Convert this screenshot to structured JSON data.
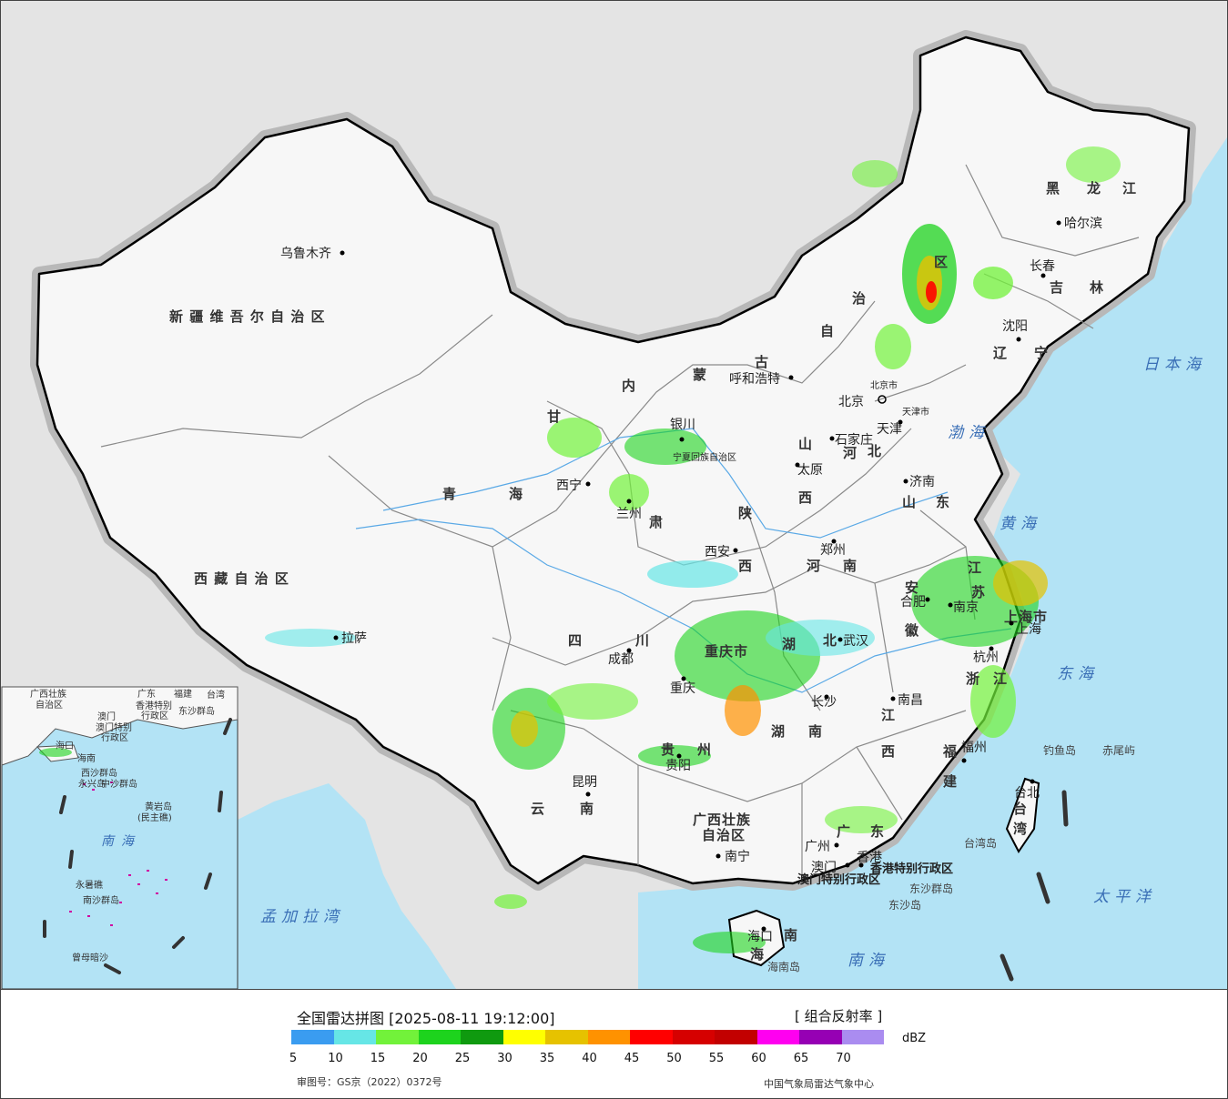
{
  "title": "全国雷达拼图 [2025-08-11 19:12:00]",
  "product": "[ 组合反射率 ]",
  "unit": "dBZ",
  "approval_no": "审图号：GS京（2022）0372号",
  "agency": "中国气象局雷达气象中心",
  "legend": {
    "colors": [
      "#3a9cf0",
      "#66e6e6",
      "#72f23a",
      "#1dd31d",
      "#0f9a0f",
      "#ffff00",
      "#e6c200",
      "#ff9200",
      "#ff0000",
      "#d60000",
      "#c20000",
      "#ff00f0",
      "#9600b4",
      "#aa8cf0"
    ],
    "ticks": [
      "5",
      "10",
      "15",
      "20",
      "25",
      "30",
      "35",
      "40",
      "45",
      "50",
      "55",
      "60",
      "65",
      "70"
    ]
  },
  "map": {
    "colors": {
      "sea": "#b3e3f5",
      "foreign_land": "#e4e4e4",
      "china_land": "#f7f7f7",
      "border": "#000000",
      "province_border": "#8a8a8a",
      "river": "#5aa9e6",
      "halo": "#b8b8b8"
    },
    "provinces": [
      {
        "name": "新 疆 维 吾 尔 自 治 区"
      },
      {
        "name": "西 藏 自 治 区"
      },
      {
        "name": "青"
      },
      {
        "name": "海"
      },
      {
        "name": "甘"
      },
      {
        "name": "肃"
      },
      {
        "name": "内"
      },
      {
        "name": "蒙"
      },
      {
        "name": "古"
      },
      {
        "name": "自"
      },
      {
        "name": "治"
      },
      {
        "name": "区"
      },
      {
        "name": "黑"
      },
      {
        "name": "龙"
      },
      {
        "name": "江"
      },
      {
        "name": "吉"
      },
      {
        "name": "林"
      },
      {
        "name": "辽"
      },
      {
        "name": "宁"
      },
      {
        "name": "河"
      },
      {
        "name": "北"
      },
      {
        "name": "山"
      },
      {
        "name": "西"
      },
      {
        "name": "陕"
      },
      {
        "name": "西"
      },
      {
        "name": "河"
      },
      {
        "name": "南"
      },
      {
        "name": "山"
      },
      {
        "name": "东"
      },
      {
        "name": "安"
      },
      {
        "name": "徽"
      },
      {
        "name": "江"
      },
      {
        "name": "苏"
      },
      {
        "name": "四"
      },
      {
        "name": "川"
      },
      {
        "name": "湖"
      },
      {
        "name": "北"
      },
      {
        "name": "湖"
      },
      {
        "name": "南"
      },
      {
        "name": "江"
      },
      {
        "name": "西"
      },
      {
        "name": "浙"
      },
      {
        "name": "江"
      },
      {
        "name": "福"
      },
      {
        "name": "建"
      },
      {
        "name": "云"
      },
      {
        "name": "南"
      },
      {
        "name": "贵"
      },
      {
        "name": "州"
      },
      {
        "name": "广"
      },
      {
        "name": "东"
      },
      {
        "name": "广西壮族"
      },
      {
        "name": "自治区"
      },
      {
        "name": "海"
      },
      {
        "name": "南"
      },
      {
        "name": "台"
      },
      {
        "name": "湾"
      },
      {
        "name": "重庆市"
      },
      {
        "name": "上海市"
      },
      {
        "name": "宁夏回族自治区"
      }
    ],
    "cities": [
      {
        "name": "乌鲁木齐"
      },
      {
        "name": "拉萨"
      },
      {
        "name": "西宁"
      },
      {
        "name": "兰州"
      },
      {
        "name": "银川"
      },
      {
        "name": "呼和浩特"
      },
      {
        "name": "北京"
      },
      {
        "name": "北京市"
      },
      {
        "name": "天津"
      },
      {
        "name": "天津市"
      },
      {
        "name": "石家庄"
      },
      {
        "name": "太原"
      },
      {
        "name": "济南"
      },
      {
        "name": "郑州"
      },
      {
        "name": "西安"
      },
      {
        "name": "成都"
      },
      {
        "name": "重庆"
      },
      {
        "name": "武汉"
      },
      {
        "name": "合肥"
      },
      {
        "name": "南京"
      },
      {
        "name": "上海"
      },
      {
        "name": "杭州"
      },
      {
        "name": "南昌"
      },
      {
        "name": "长沙"
      },
      {
        "name": "贵阳"
      },
      {
        "name": "昆明"
      },
      {
        "name": "南宁"
      },
      {
        "name": "广州"
      },
      {
        "name": "澳门"
      },
      {
        "name": "香港"
      },
      {
        "name": "福州"
      },
      {
        "name": "台北"
      },
      {
        "name": "沈阳"
      },
      {
        "name": "长春"
      },
      {
        "name": "哈尔滨"
      },
      {
        "name": "海口"
      }
    ],
    "seas": [
      {
        "name": "日本海"
      },
      {
        "name": "渤海"
      },
      {
        "name": "黄海"
      },
      {
        "name": "东海"
      },
      {
        "name": "太平洋"
      },
      {
        "name": "南海"
      },
      {
        "name": "孟加拉湾"
      }
    ],
    "islands": [
      {
        "name": "钓鱼岛"
      },
      {
        "name": "赤尾屿"
      },
      {
        "name": "台湾岛"
      },
      {
        "name": "东沙群岛"
      },
      {
        "name": "东沙岛"
      },
      {
        "name": "海南岛"
      }
    ],
    "sar_labels": [
      {
        "name": "香港特别行政区"
      },
      {
        "name": "澳门特别行政区"
      }
    ],
    "inset": {
      "labels": [
        {
          "name": "广西壮族"
        },
        {
          "name": "自治区"
        },
        {
          "name": "广东"
        },
        {
          "name": "福建"
        },
        {
          "name": "台湾"
        },
        {
          "name": "澳门"
        },
        {
          "name": "香港特别"
        },
        {
          "name": "行政区"
        },
        {
          "name": "澳门特别"
        },
        {
          "name": "行政区"
        },
        {
          "name": "东沙群岛"
        },
        {
          "name": "海口"
        },
        {
          "name": "海南"
        },
        {
          "name": "西沙群岛"
        },
        {
          "name": "永兴岛"
        },
        {
          "name": "中沙群岛"
        },
        {
          "name": "黄岩岛"
        },
        {
          "name": "(民主礁)"
        },
        {
          "name": "南海"
        },
        {
          "name": "永暑礁"
        },
        {
          "name": "南沙群岛"
        },
        {
          "name": "曾母暗沙"
        }
      ]
    }
  }
}
